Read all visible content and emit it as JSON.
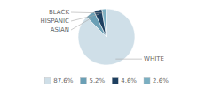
{
  "chart_data": {
    "type": "pie",
    "categories": [
      "WHITE",
      "ASIAN",
      "HISPANIC",
      "BLACK"
    ],
    "values": [
      87.6,
      5.2,
      4.6,
      2.6
    ],
    "value_labels": [
      "87.6%",
      "5.2%",
      "4.6%",
      "2.6%"
    ],
    "colors": [
      "#cfdfe8",
      "#6a9fb5",
      "#1e4060",
      "#7aafc2"
    ],
    "legend": "bottom"
  }
}
